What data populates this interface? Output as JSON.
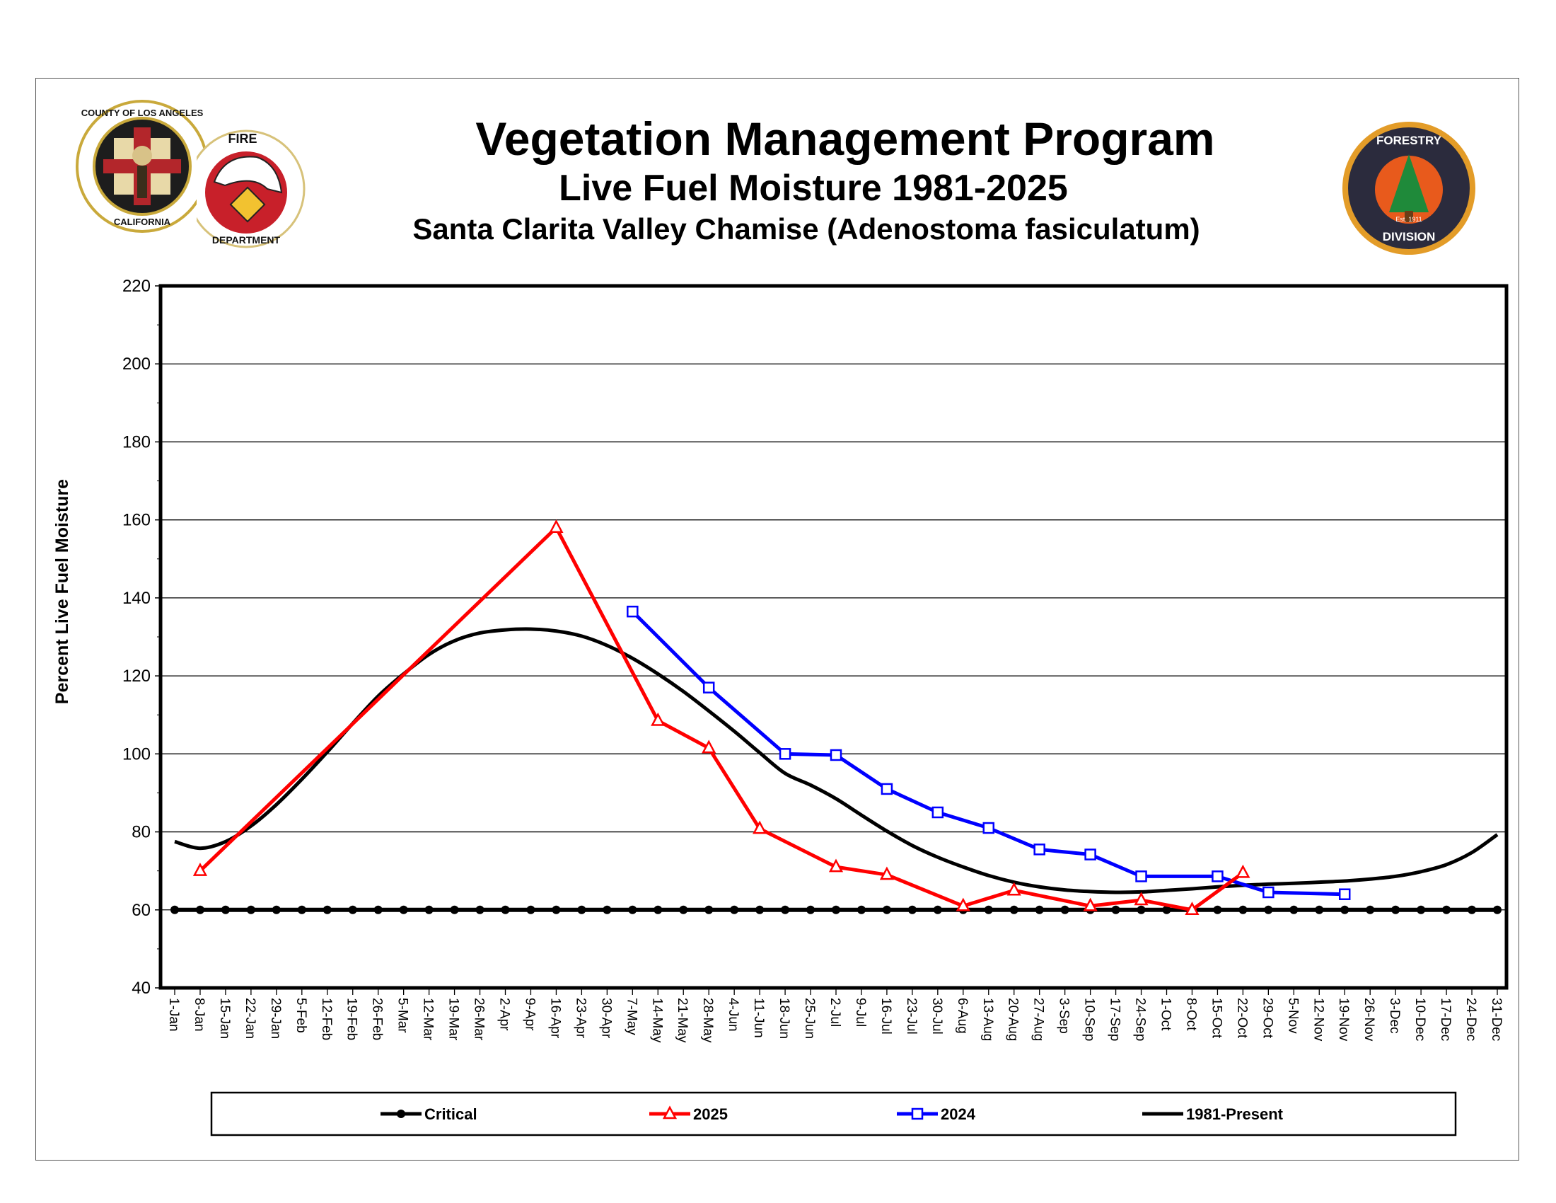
{
  "header": {
    "title": "Vegetation Management Program",
    "subtitle": "Live Fuel Moisture 1981-2025",
    "subtitle2": "Santa Clarita Valley Chamise (Adenostoma fasiculatum)"
  },
  "logos": {
    "county_seal": "COUNTY OF LOS ANGELES CALIFORNIA",
    "fire_department": "FIRE DEPARTMENT",
    "forestry_division": "FORESTRY DIVISION Est. 1911"
  },
  "chart_data": {
    "type": "line",
    "title": "Live Fuel Moisture 1981-2025",
    "xlabel": "",
    "ylabel": "Percent Live Fuel Moisture",
    "ylim": [
      40,
      220
    ],
    "yticks": [
      40,
      60,
      80,
      100,
      120,
      140,
      160,
      180,
      200,
      220
    ],
    "grid": "horizontal",
    "legend_placement": "bottom",
    "categories": [
      "1-Jan",
      "8-Jan",
      "15-Jan",
      "22-Jan",
      "29-Jan",
      "5-Feb",
      "12-Feb",
      "19-Feb",
      "26-Feb",
      "5-Mar",
      "12-Mar",
      "19-Mar",
      "26-Mar",
      "2-Apr",
      "9-Apr",
      "16-Apr",
      "23-Apr",
      "30-Apr",
      "7-May",
      "14-May",
      "21-May",
      "28-May",
      "4-Jun",
      "11-Jun",
      "18-Jun",
      "25-Jun",
      "2-Jul",
      "9-Jul",
      "16-Jul",
      "23-Jul",
      "30-Jul",
      "6-Aug",
      "13-Aug",
      "20-Aug",
      "27-Aug",
      "3-Sep",
      "10-Sep",
      "17-Sep",
      "24-Sep",
      "1-Oct",
      "8-Oct",
      "15-Oct",
      "22-Oct",
      "29-Oct",
      "5-Nov",
      "12-Nov",
      "19-Nov",
      "26-Nov",
      "3-Dec",
      "10-Dec",
      "17-Dec",
      "24-Dec",
      "31-Dec"
    ],
    "series": [
      {
        "name": "Critical",
        "color": "#000000",
        "marker": "circle",
        "points": [
          [
            "1-Jan",
            60
          ],
          [
            "8-Jan",
            60
          ],
          [
            "15-Jan",
            60
          ],
          [
            "22-Jan",
            60
          ],
          [
            "29-Jan",
            60
          ],
          [
            "5-Feb",
            60
          ],
          [
            "12-Feb",
            60
          ],
          [
            "19-Feb",
            60
          ],
          [
            "26-Feb",
            60
          ],
          [
            "5-Mar",
            60
          ],
          [
            "12-Mar",
            60
          ],
          [
            "19-Mar",
            60
          ],
          [
            "26-Mar",
            60
          ],
          [
            "2-Apr",
            60
          ],
          [
            "9-Apr",
            60
          ],
          [
            "16-Apr",
            60
          ],
          [
            "23-Apr",
            60
          ],
          [
            "30-Apr",
            60
          ],
          [
            "7-May",
            60
          ],
          [
            "14-May",
            60
          ],
          [
            "21-May",
            60
          ],
          [
            "28-May",
            60
          ],
          [
            "4-Jun",
            60
          ],
          [
            "11-Jun",
            60
          ],
          [
            "18-Jun",
            60
          ],
          [
            "25-Jun",
            60
          ],
          [
            "2-Jul",
            60
          ],
          [
            "9-Jul",
            60
          ],
          [
            "16-Jul",
            60
          ],
          [
            "23-Jul",
            60
          ],
          [
            "30-Jul",
            60
          ],
          [
            "6-Aug",
            60
          ],
          [
            "13-Aug",
            60
          ],
          [
            "20-Aug",
            60
          ],
          [
            "27-Aug",
            60
          ],
          [
            "3-Sep",
            60
          ],
          [
            "10-Sep",
            60
          ],
          [
            "17-Sep",
            60
          ],
          [
            "24-Sep",
            60
          ],
          [
            "1-Oct",
            60
          ],
          [
            "8-Oct",
            60
          ],
          [
            "15-Oct",
            60
          ],
          [
            "22-Oct",
            60
          ],
          [
            "29-Oct",
            60
          ],
          [
            "5-Nov",
            60
          ],
          [
            "12-Nov",
            60
          ],
          [
            "19-Nov",
            60
          ],
          [
            "26-Nov",
            60
          ],
          [
            "3-Dec",
            60
          ],
          [
            "10-Dec",
            60
          ],
          [
            "17-Dec",
            60
          ],
          [
            "24-Dec",
            60
          ],
          [
            "31-Dec",
            60
          ]
        ]
      },
      {
        "name": "2025",
        "color": "#ff0000",
        "marker": "triangle",
        "points": [
          [
            "8-Jan",
            70
          ],
          [
            "16-Apr",
            158
          ],
          [
            "14-May",
            108.5
          ],
          [
            "28-May",
            101.5
          ],
          [
            "11-Jun",
            80.8
          ],
          [
            "2-Jul",
            71
          ],
          [
            "16-Jul",
            69
          ],
          [
            "6-Aug",
            61
          ],
          [
            "20-Aug",
            65
          ],
          [
            "10-Sep",
            61
          ],
          [
            "24-Sep",
            62.5
          ],
          [
            "8-Oct",
            60
          ],
          [
            "22-Oct",
            69.5
          ]
        ]
      },
      {
        "name": "2024",
        "color": "#0000ff",
        "marker": "square",
        "points": [
          [
            "7-May",
            136.5
          ],
          [
            "28-May",
            117
          ],
          [
            "18-Jun",
            100
          ],
          [
            "2-Jul",
            99.7
          ],
          [
            "16-Jul",
            91
          ],
          [
            "30-Jul",
            85
          ],
          [
            "13-Aug",
            81
          ],
          [
            "27-Aug",
            75.5
          ],
          [
            "10-Sep",
            74.2
          ],
          [
            "24-Sep",
            68.6
          ],
          [
            "15-Oct",
            68.6
          ],
          [
            "29-Oct",
            64.5
          ],
          [
            "19-Nov",
            64
          ]
        ]
      },
      {
        "name": "1981-Present",
        "color": "#000000",
        "marker": "none",
        "smooth": true,
        "points": [
          [
            "1-Jan",
            77.5
          ],
          [
            "8-Jan",
            75.8
          ],
          [
            "15-Jan",
            77.5
          ],
          [
            "22-Jan",
            81.5
          ],
          [
            "29-Jan",
            87
          ],
          [
            "5-Feb",
            93.5
          ],
          [
            "12-Feb",
            100.5
          ],
          [
            "19-Feb",
            107.8
          ],
          [
            "26-Feb",
            114.8
          ],
          [
            "5-Mar",
            120.5
          ],
          [
            "12-Mar",
            125.5
          ],
          [
            "19-Mar",
            129
          ],
          [
            "26-Mar",
            131
          ],
          [
            "2-Apr",
            131.8
          ],
          [
            "9-Apr",
            132
          ],
          [
            "16-Apr",
            131.5
          ],
          [
            "23-Apr",
            130.2
          ],
          [
            "30-Apr",
            127.8
          ],
          [
            "7-May",
            124.5
          ],
          [
            "14-May",
            120.5
          ],
          [
            "21-May",
            116
          ],
          [
            "28-May",
            111
          ],
          [
            "4-Jun",
            105.8
          ],
          [
            "11-Jun",
            100.3
          ],
          [
            "18-Jun",
            95
          ],
          [
            "25-Jun",
            92
          ],
          [
            "2-Jul",
            88.5
          ],
          [
            "9-Jul",
            84.3
          ],
          [
            "16-Jul",
            80.2
          ],
          [
            "23-Jul",
            76.5
          ],
          [
            "30-Jul",
            73.5
          ],
          [
            "6-Aug",
            71
          ],
          [
            "13-Aug",
            68.8
          ],
          [
            "20-Aug",
            67.1
          ],
          [
            "27-Aug",
            65.9
          ],
          [
            "3-Sep",
            65.1
          ],
          [
            "10-Sep",
            64.7
          ],
          [
            "17-Sep",
            64.5
          ],
          [
            "24-Sep",
            64.6
          ],
          [
            "1-Oct",
            65
          ],
          [
            "8-Oct",
            65.4
          ],
          [
            "15-Oct",
            65.9
          ],
          [
            "22-Oct",
            66.3
          ],
          [
            "29-Oct",
            66.6
          ],
          [
            "5-Nov",
            66.8
          ],
          [
            "12-Nov",
            67.1
          ],
          [
            "19-Nov",
            67.4
          ],
          [
            "26-Nov",
            67.9
          ],
          [
            "3-Dec",
            68.6
          ],
          [
            "10-Dec",
            69.8
          ],
          [
            "17-Dec",
            71.6
          ],
          [
            "24-Dec",
            74.7
          ],
          [
            "31-Dec",
            79.3
          ]
        ]
      }
    ]
  }
}
